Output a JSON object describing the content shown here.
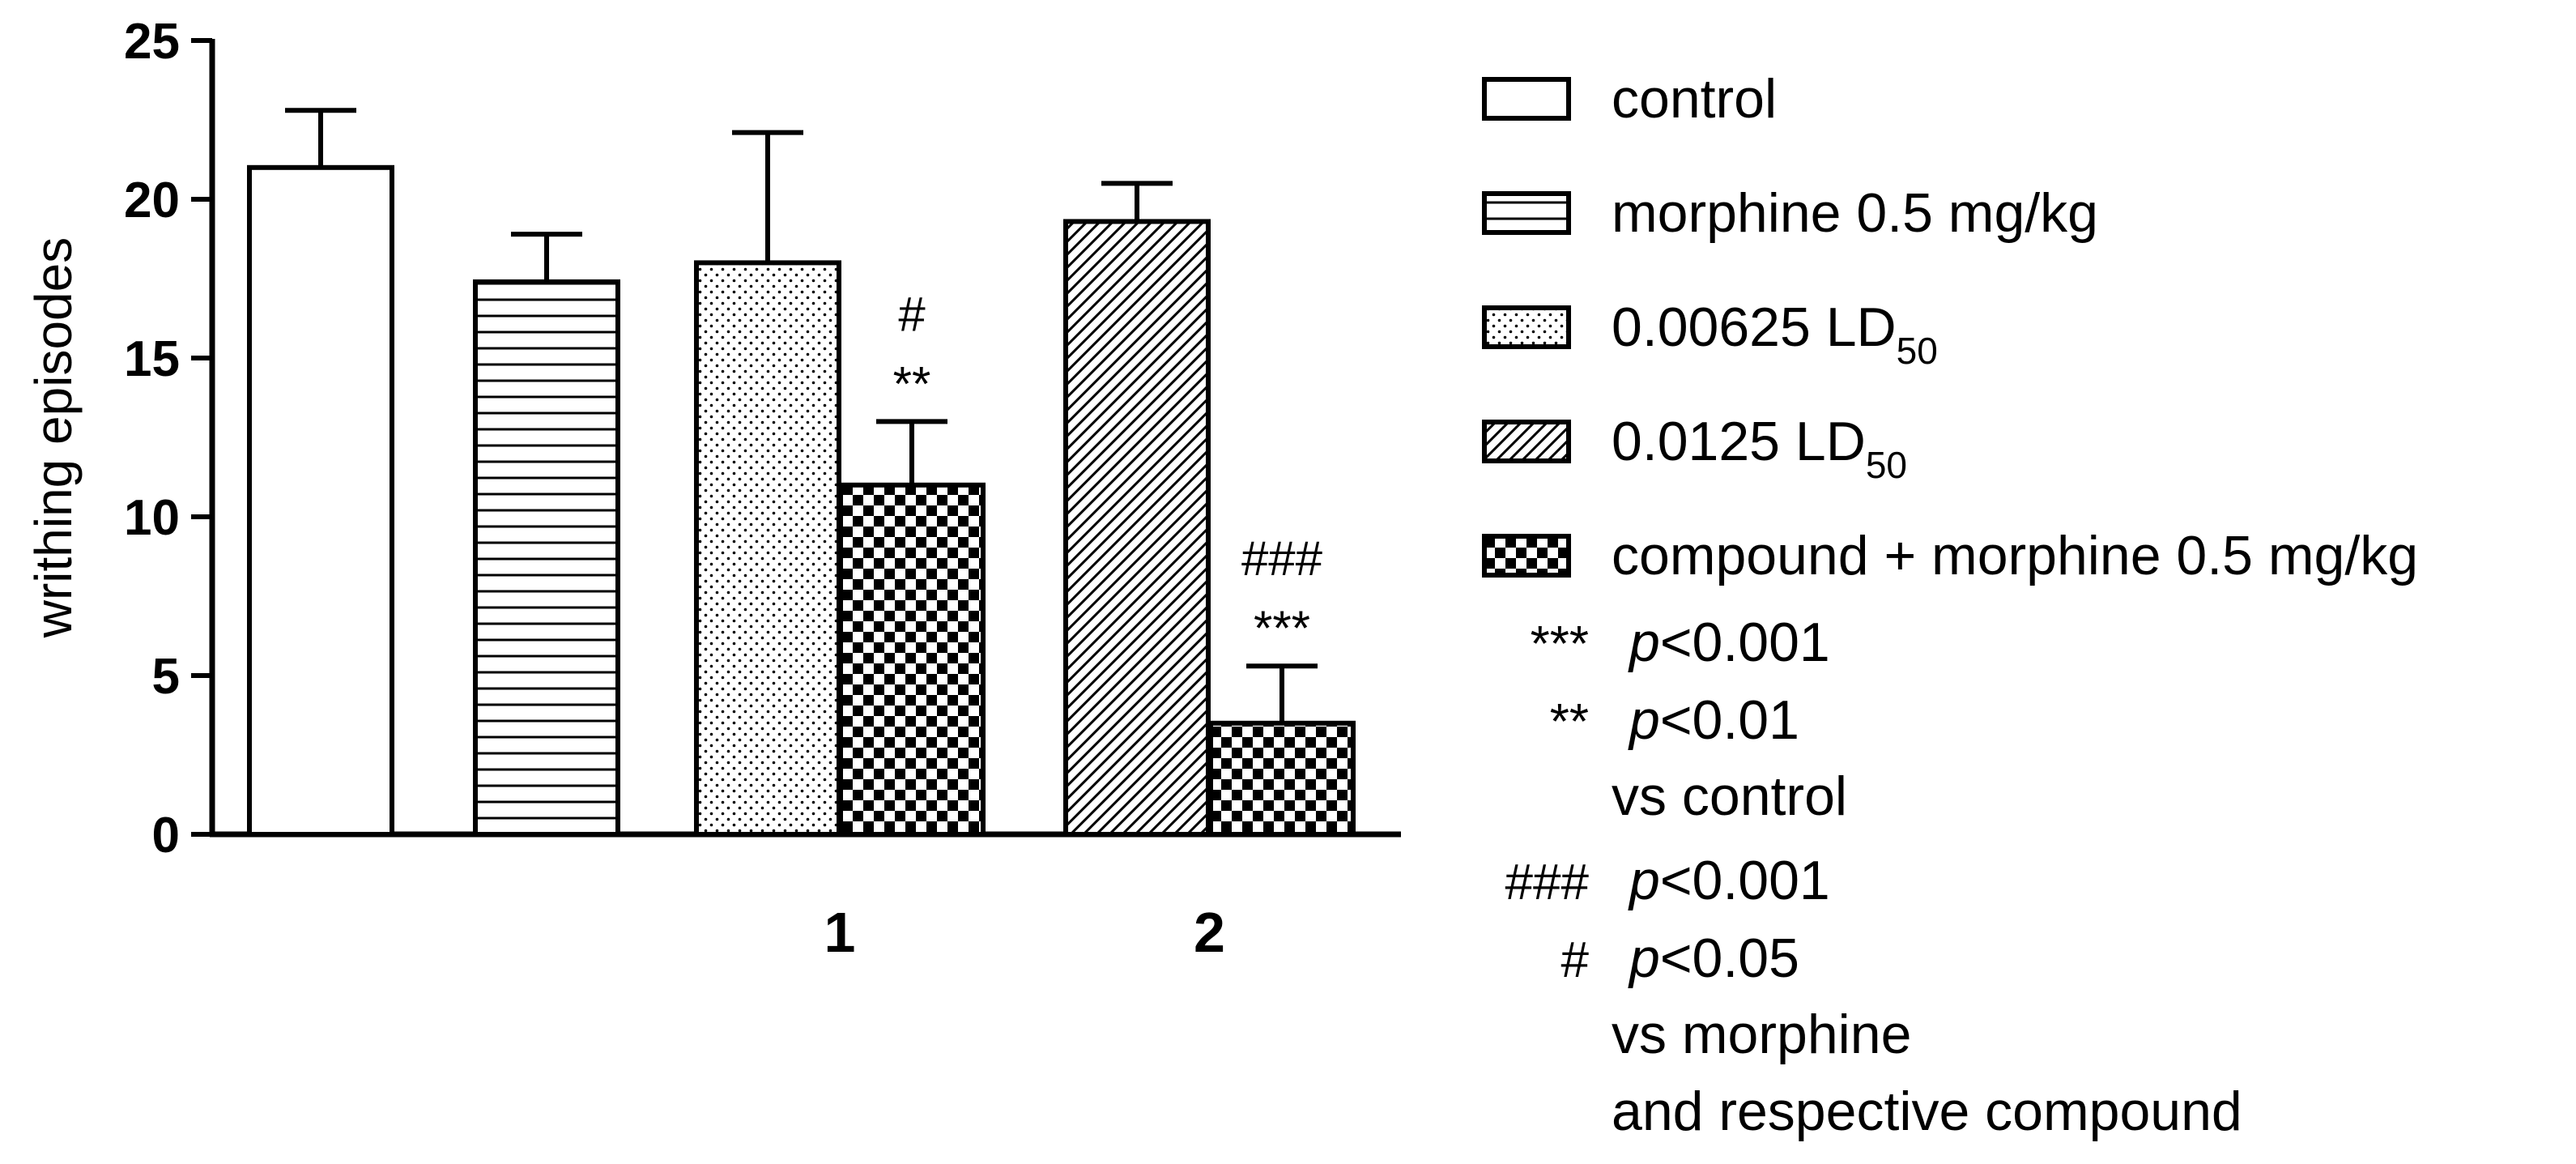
{
  "chart_data": {
    "type": "bar",
    "title": "",
    "xlabel": "",
    "ylabel": "writhing episodes",
    "ylim": [
      0,
      25
    ],
    "yticks": [
      "0",
      "5",
      "10",
      "15",
      "20",
      "25"
    ],
    "categories": [
      "",
      "1",
      "2"
    ],
    "bars": [
      {
        "series": "control",
        "value": 21.0,
        "error": 1.8,
        "group": 0,
        "pattern": "empty",
        "annotation": []
      },
      {
        "series": "morphine 0.5 mg/kg",
        "value": 17.4,
        "error": 1.5,
        "group": 0,
        "pattern": "hlines",
        "annotation": []
      },
      {
        "series": "0.00625 LD50",
        "value": 18.0,
        "error": 4.1,
        "group": 1,
        "pattern": "dots",
        "annotation": []
      },
      {
        "series": "compound + morphine 0.5 mg/kg",
        "value": 11.0,
        "error": 2.0,
        "group": 1,
        "pattern": "checker",
        "annotation": [
          "#",
          "**"
        ]
      },
      {
        "series": "0.0125 LD50",
        "value": 19.3,
        "error": 1.2,
        "group": 2,
        "pattern": "diag",
        "annotation": []
      },
      {
        "series": "compound + morphine 0.5 mg/kg",
        "value": 3.5,
        "error": 1.8,
        "group": 2,
        "pattern": "checker",
        "annotation": [
          "###",
          "***"
        ]
      }
    ],
    "legend": {
      "position": "right",
      "entries": [
        {
          "label": "control",
          "sub": "",
          "pattern": "empty"
        },
        {
          "label": "morphine 0.5 mg/kg",
          "sub": "",
          "pattern": "hlines"
        },
        {
          "label": "0.00625 LD",
          "sub": "50",
          "pattern": "dots"
        },
        {
          "label": "0.0125 LD",
          "sub": "50",
          "pattern": "diag"
        },
        {
          "label": "compound + morphine 0.5 mg/kg",
          "sub": "",
          "pattern": "checker"
        }
      ]
    },
    "significance_notes": [
      {
        "symbol": "***",
        "text": "p<0.001"
      },
      {
        "symbol": "**",
        "text": "p<0.01"
      },
      {
        "symbol": "",
        "text": "vs control"
      },
      {
        "symbol": "###",
        "text": "p<0.001"
      },
      {
        "symbol": "#",
        "text": "p<0.05"
      },
      {
        "symbol": "",
        "text": "vs morphine"
      },
      {
        "symbol": "",
        "text": "and respective compound"
      }
    ],
    "grid": false
  }
}
